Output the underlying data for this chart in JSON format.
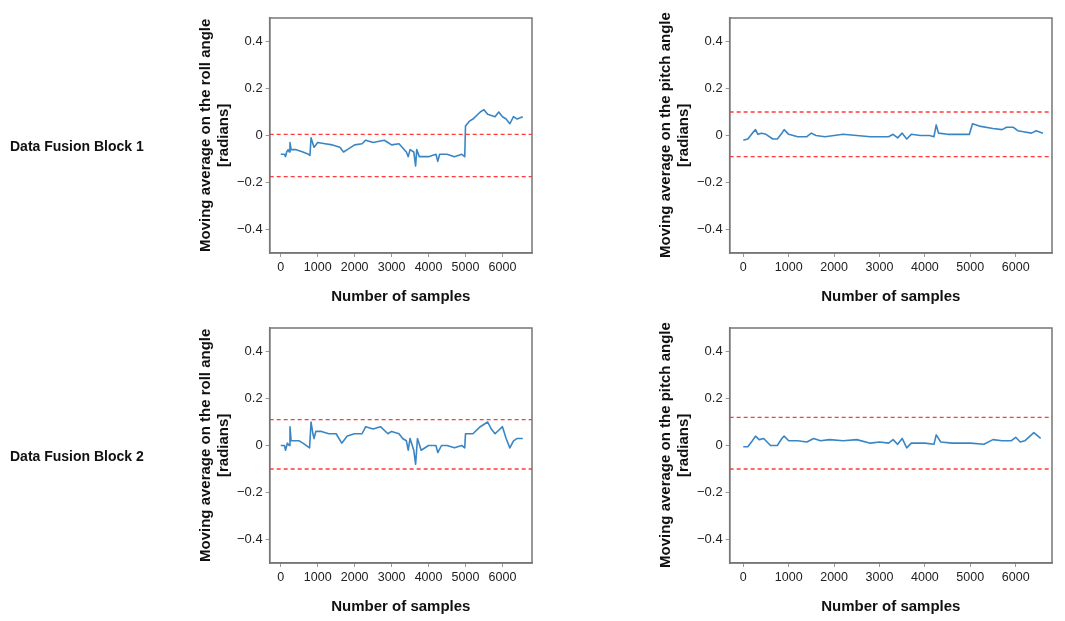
{
  "chart_data": [
    {
      "type": "line",
      "xlabel": "Number of samples",
      "ylabel": "Moving average on the roll angle [radians]",
      "annotations": [
        "Data Fusion Block 1"
      ],
      "xlim": [
        -300,
        6800
      ],
      "ylim": [
        -0.5,
        0.5
      ],
      "xticks": [
        0,
        1000,
        2000,
        3000,
        4000,
        5000,
        6000
      ],
      "yticks": [
        -0.4,
        -0.2,
        0,
        0.2,
        0.4
      ],
      "grid": false,
      "marker": "none",
      "line_style": "solid",
      "ref_lines": [
        {
          "axis": "y",
          "value": 0.005,
          "label": null,
          "color": "#ff3b3b",
          "line_style": "dashed"
        },
        {
          "axis": "y",
          "value": -0.175,
          "label": null,
          "color": "#ff3b3b",
          "line_style": "dashed"
        }
      ],
      "series": [
        {
          "color": "#3a86c4",
          "x": [
            0,
            100,
            130,
            160,
            200,
            230,
            250,
            280,
            400,
            500,
            600,
            750,
            790,
            820,
            860,
            900,
            950,
            1000,
            1200,
            1400,
            1600,
            1700,
            1800,
            2000,
            2200,
            2300,
            2500,
            2800,
            2900,
            3000,
            3200,
            3400,
            3450,
            3500,
            3600,
            3650,
            3680,
            3750,
            4000,
            4200,
            4250,
            4300,
            4500,
            4700,
            4900,
            4980,
            5000,
            5100,
            5200,
            5400,
            5500,
            5600,
            5800,
            5900,
            6000,
            6100,
            6200,
            6300,
            6400,
            6550
          ],
          "values": [
            -0.08,
            -0.08,
            -0.09,
            -0.07,
            -0.06,
            -0.07,
            -0.03,
            -0.06,
            -0.06,
            -0.065,
            -0.07,
            -0.08,
            -0.085,
            -0.01,
            -0.03,
            -0.05,
            -0.04,
            -0.03,
            -0.035,
            -0.04,
            -0.05,
            -0.07,
            -0.06,
            -0.04,
            -0.035,
            -0.02,
            -0.03,
            -0.02,
            -0.03,
            -0.04,
            -0.035,
            -0.07,
            -0.09,
            -0.06,
            -0.07,
            -0.13,
            -0.06,
            -0.09,
            -0.09,
            -0.08,
            -0.11,
            -0.08,
            -0.08,
            -0.09,
            -0.08,
            -0.09,
            0.04,
            0.06,
            0.07,
            0.1,
            0.11,
            0.09,
            0.08,
            0.1,
            0.08,
            0.07,
            0.05,
            0.08,
            0.07,
            0.08
          ]
        }
      ]
    },
    {
      "type": "line",
      "xlabel": "Number of samples",
      "ylabel": "Moving average on the pitch angle [radians]",
      "xlim": [
        -300,
        6800
      ],
      "ylim": [
        -0.5,
        0.5
      ],
      "xticks": [
        0,
        1000,
        2000,
        3000,
        4000,
        5000,
        6000
      ],
      "yticks": [
        -0.4,
        -0.2,
        0,
        0.2,
        0.4
      ],
      "grid": false,
      "marker": "none",
      "line_style": "solid",
      "ref_lines": [
        {
          "axis": "y",
          "value": 0.1,
          "label": null,
          "color": "#ff3b3b",
          "line_style": "dashed"
        },
        {
          "axis": "y",
          "value": -0.09,
          "label": null,
          "color": "#ff3b3b",
          "line_style": "dashed"
        }
      ],
      "series": [
        {
          "color": "#3a86c4",
          "x": [
            0,
            100,
            200,
            270,
            320,
            400,
            500,
            650,
            750,
            850,
            900,
            1000,
            1200,
            1400,
            1500,
            1600,
            1800,
            2000,
            2200,
            2500,
            2800,
            3000,
            3200,
            3300,
            3400,
            3500,
            3600,
            3700,
            3900,
            4100,
            4200,
            4250,
            4300,
            4500,
            4800,
            4980,
            5050,
            5200,
            5500,
            5700,
            5800,
            5950,
            6050,
            6200,
            6350,
            6450,
            6600
          ],
          "values": [
            -0.02,
            -0.015,
            0.01,
            0.025,
            0.005,
            0.01,
            0.005,
            -0.015,
            -0.015,
            0.01,
            0.025,
            0.005,
            -0.005,
            -0.005,
            0.01,
            0,
            -0.005,
            0,
            0.005,
            0,
            -0.005,
            -0.005,
            -0.005,
            0.005,
            -0.01,
            0.01,
            -0.015,
            0.005,
            0,
            0,
            -0.005,
            0.045,
            0.01,
            0.005,
            0.005,
            0.005,
            0.05,
            0.04,
            0.03,
            0.025,
            0.035,
            0.035,
            0.02,
            0.015,
            0.01,
            0.02,
            0.01
          ]
        }
      ]
    },
    {
      "type": "line",
      "xlabel": "Number of samples",
      "ylabel": "Moving average on the roll angle [radians]",
      "annotations": [
        "Data Fusion Block 2"
      ],
      "xlim": [
        -300,
        6800
      ],
      "ylim": [
        -0.5,
        0.5
      ],
      "xticks": [
        0,
        1000,
        2000,
        3000,
        4000,
        5000,
        6000
      ],
      "yticks": [
        -0.4,
        -0.2,
        0,
        0.2,
        0.4
      ],
      "grid": false,
      "marker": "none",
      "line_style": "solid",
      "ref_lines": [
        {
          "axis": "y",
          "value": 0.11,
          "label": null,
          "color": "#ff3b3b",
          "line_style": "dashed"
        },
        {
          "axis": "y",
          "value": -0.1,
          "label": null,
          "color": "#ff3b3b",
          "line_style": "dashed"
        }
      ],
      "series": [
        {
          "color": "#3a86c4",
          "x": [
            0,
            100,
            130,
            180,
            230,
            250,
            280,
            400,
            500,
            600,
            780,
            820,
            870,
            900,
            950,
            1100,
            1300,
            1500,
            1650,
            1800,
            2000,
            2200,
            2300,
            2500,
            2700,
            2900,
            3000,
            3200,
            3300,
            3400,
            3450,
            3500,
            3600,
            3650,
            3700,
            3800,
            4000,
            4200,
            4250,
            4350,
            4500,
            4700,
            4900,
            4980,
            5000,
            5200,
            5400,
            5600,
            5700,
            5800,
            6000,
            6100,
            6200,
            6300,
            6400,
            6550
          ],
          "values": [
            0,
            0,
            -0.02,
            0.01,
            0,
            0.08,
            0.02,
            0.02,
            0.02,
            0.01,
            -0.01,
            0.1,
            0.05,
            0.03,
            0.06,
            0.06,
            0.05,
            0.05,
            0.01,
            0.04,
            0.05,
            0.05,
            0.08,
            0.07,
            0.08,
            0.05,
            0.06,
            0.05,
            0.03,
            0.02,
            -0.02,
            0.03,
            -0.02,
            -0.08,
            0.03,
            -0.02,
            0,
            0,
            -0.03,
            0,
            0,
            -0.01,
            0,
            -0.01,
            0.05,
            0.05,
            0.08,
            0.1,
            0.07,
            0.05,
            0.08,
            0.03,
            -0.01,
            0.02,
            0.03,
            0.03
          ]
        }
      ]
    },
    {
      "type": "line",
      "xlabel": "Number of samples",
      "ylabel": "Moving average on  the pitch angle [radians]",
      "xlim": [
        -300,
        6800
      ],
      "ylim": [
        -0.5,
        0.5
      ],
      "xticks": [
        0,
        1000,
        2000,
        3000,
        4000,
        5000,
        6000
      ],
      "yticks": [
        -0.4,
        -0.2,
        0,
        0.2,
        0.4
      ],
      "grid": false,
      "marker": "none",
      "line_style": "solid",
      "ref_lines": [
        {
          "axis": "y",
          "value": 0.12,
          "label": null,
          "color": "#ff3b3b",
          "line_style": "dashed"
        },
        {
          "axis": "y",
          "value": -0.1,
          "label": null,
          "color": "#ff3b3b",
          "line_style": "dashed"
        }
      ],
      "series": [
        {
          "color": "#3a86c4",
          "x": [
            0,
            100,
            200,
            270,
            350,
            450,
            600,
            750,
            850,
            900,
            1000,
            1200,
            1400,
            1550,
            1700,
            1900,
            2200,
            2500,
            2800,
            3000,
            3200,
            3300,
            3400,
            3500,
            3600,
            3700,
            4000,
            4200,
            4250,
            4350,
            4600,
            5000,
            5300,
            5500,
            5700,
            5900,
            6000,
            6100,
            6200,
            6400,
            6550
          ],
          "values": [
            -0.005,
            -0.005,
            0.02,
            0.04,
            0.025,
            0.03,
            0,
            0,
            0.03,
            0.04,
            0.02,
            0.02,
            0.015,
            0.03,
            0.02,
            0.025,
            0.02,
            0.025,
            0.01,
            0.015,
            0.01,
            0.025,
            0.005,
            0.03,
            -0.01,
            0.01,
            0.01,
            0.005,
            0.045,
            0.015,
            0.01,
            0.01,
            0.005,
            0.025,
            0.02,
            0.02,
            0.035,
            0.015,
            0.02,
            0.055,
            0.03
          ]
        }
      ]
    }
  ]
}
